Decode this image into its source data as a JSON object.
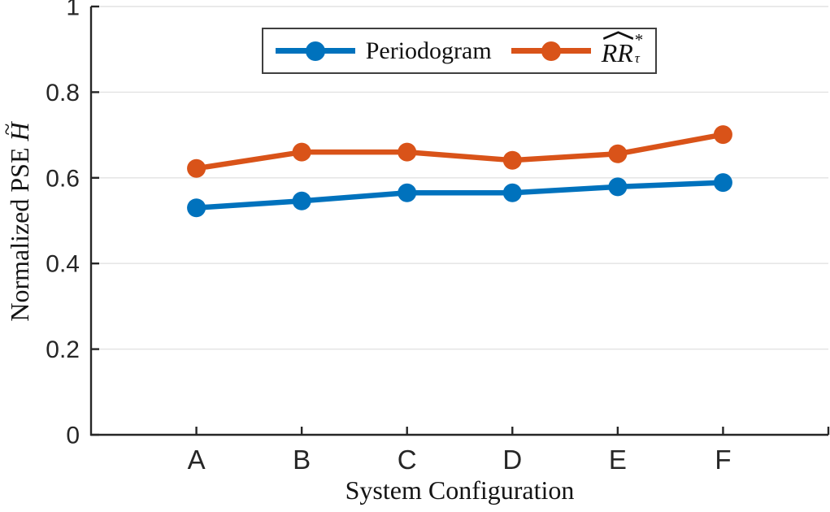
{
  "figure": {
    "background": "#ffffff",
    "axis_color": "#262626",
    "grid_color": "#e2e2e2",
    "tick_label_color": "#262626"
  },
  "labels": {
    "xlabel": "System Configuration",
    "ylabel_prefix": "Normalized PSE ",
    "ylabel_math_base": "H",
    "ylabel_math_accent": "~"
  },
  "legend": {
    "items": [
      {
        "label": "Periodogram",
        "color": "#0072BD"
      },
      {
        "base": "RR",
        "sup": "*",
        "sub": "τ",
        "color": "#D95319"
      }
    ]
  },
  "chart_data": {
    "type": "line",
    "categories": [
      "A",
      "B",
      "C",
      "D",
      "E",
      "F"
    ],
    "series": [
      {
        "name": "Periodogram",
        "color": "#0072BD",
        "values": [
          0.53,
          0.546,
          0.565,
          0.565,
          0.579,
          0.589
        ]
      },
      {
        "name": "RR-hat-star-tau",
        "color": "#D95319",
        "values": [
          0.622,
          0.66,
          0.66,
          0.641,
          0.656,
          0.701
        ]
      }
    ],
    "title": "",
    "xlabel": "System Configuration",
    "ylabel": "Normalized PSE H~",
    "ylim": [
      0,
      1
    ],
    "yticks": [
      0,
      0.2,
      0.4,
      0.6,
      0.8,
      1
    ],
    "ytick_labels": [
      "0",
      "0.2",
      "0.4",
      "0.6",
      "0.8",
      "1"
    ],
    "grid": "horizontal",
    "legend_position": "top-center",
    "marker": "circle",
    "marker_radius": 11.5,
    "line_width": 6.5
  }
}
